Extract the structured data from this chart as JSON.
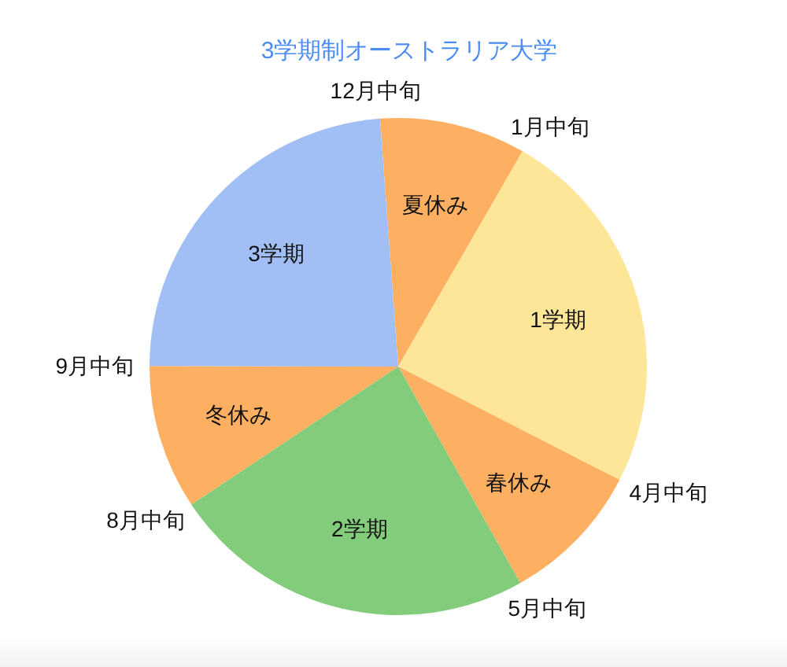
{
  "chart_data": {
    "type": "pie",
    "title": "3学期制オーストラリア大学",
    "categories": [
      "夏休み",
      "1学期",
      "春休み",
      "2学期",
      "冬休み",
      "3学期"
    ],
    "values": [
      9.5,
      24.2,
      9.3,
      23.8,
      9.4,
      23.8
    ],
    "colors": [
      "#fdaf62",
      "#fee699",
      "#fdaf62",
      "#82cc7b",
      "#fdaf62",
      "#a1bff4"
    ],
    "annotations": [
      "12月中旬",
      "1月中旬",
      "4月中旬",
      "5月中旬",
      "8月中旬",
      "9月中旬"
    ]
  }
}
